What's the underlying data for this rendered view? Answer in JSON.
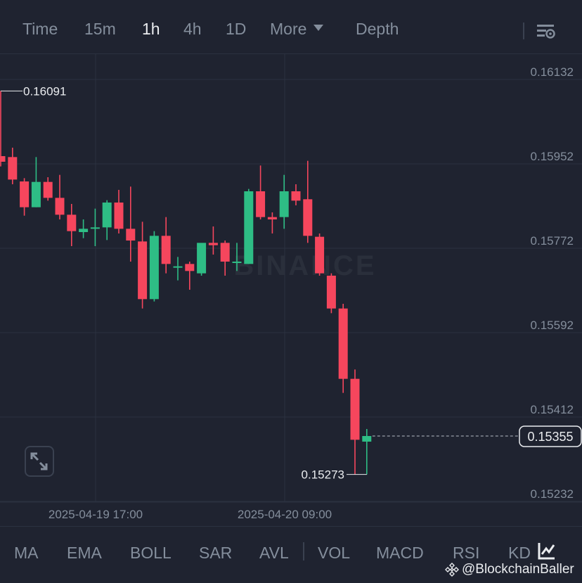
{
  "topbar": {
    "tabs": [
      {
        "label": "Time",
        "active": false
      },
      {
        "label": "15m",
        "active": false
      },
      {
        "label": "1h",
        "active": true
      },
      {
        "label": "4h",
        "active": false
      },
      {
        "label": "1D",
        "active": false
      },
      {
        "label": "More",
        "active": false
      },
      {
        "label": "Depth",
        "active": false
      }
    ],
    "settings_icon": "chart-settings-icon"
  },
  "chart_data": {
    "type": "candlestick",
    "watermark": "BINANCE",
    "y_ticks": [
      "0.16132",
      "0.15952",
      "0.15772",
      "0.15592",
      "0.15412",
      "0.15232"
    ],
    "ylim": [
      0.15232,
      0.16132
    ],
    "x_tick_labels": [
      "2025-04-19 17:00",
      "2025-04-20 09:00"
    ],
    "high_marker": "0.16091",
    "low_marker": "0.15273",
    "last_price": "0.15355",
    "colors": {
      "up": "#2ebd85",
      "down": "#f6465d",
      "background": "#1f2330",
      "grid": "#2b3140"
    },
    "candles": [
      {
        "o": 0.15952,
        "h": 0.16091,
        "c": 0.1594,
        "l": 0.1593
      },
      {
        "o": 0.1595,
        "h": 0.1597,
        "c": 0.15902,
        "l": 0.15892
      },
      {
        "o": 0.15898,
        "h": 0.15905,
        "c": 0.15843,
        "l": 0.15825
      },
      {
        "o": 0.15843,
        "h": 0.1595,
        "c": 0.15897,
        "l": 0.15843
      },
      {
        "o": 0.15897,
        "h": 0.15907,
        "c": 0.15863,
        "l": 0.15857
      },
      {
        "o": 0.15863,
        "h": 0.15912,
        "c": 0.15827,
        "l": 0.15817
      },
      {
        "o": 0.15827,
        "h": 0.1585,
        "c": 0.15792,
        "l": 0.1576
      },
      {
        "o": 0.1579,
        "h": 0.15817,
        "c": 0.15797,
        "l": 0.15777
      },
      {
        "o": 0.158,
        "h": 0.1584,
        "c": 0.158,
        "l": 0.1576
      },
      {
        "o": 0.158,
        "h": 0.15858,
        "c": 0.15853,
        "l": 0.15773
      },
      {
        "o": 0.15853,
        "h": 0.1588,
        "c": 0.15797,
        "l": 0.15787
      },
      {
        "o": 0.15797,
        "h": 0.15887,
        "c": 0.15772,
        "l": 0.15727
      },
      {
        "o": 0.1577,
        "h": 0.15812,
        "c": 0.15647,
        "l": 0.15627
      },
      {
        "o": 0.15647,
        "h": 0.15792,
        "c": 0.15782,
        "l": 0.15642
      },
      {
        "o": 0.15782,
        "h": 0.15822,
        "c": 0.15722,
        "l": 0.15702
      },
      {
        "o": 0.15717,
        "h": 0.15737,
        "c": 0.15717,
        "l": 0.15687
      },
      {
        "o": 0.15722,
        "h": 0.15727,
        "c": 0.15707,
        "l": 0.15667
      },
      {
        "o": 0.15702,
        "h": 0.15762,
        "c": 0.15767,
        "l": 0.15697
      },
      {
        "o": 0.15767,
        "h": 0.15802,
        "c": 0.15762,
        "l": 0.15742
      },
      {
        "o": 0.15767,
        "h": 0.15772,
        "c": 0.15727,
        "l": 0.15697
      },
      {
        "o": 0.15727,
        "h": 0.15767,
        "c": 0.15727,
        "l": 0.15707
      },
      {
        "o": 0.15722,
        "h": 0.15882,
        "c": 0.15877,
        "l": 0.15722
      },
      {
        "o": 0.15877,
        "h": 0.15932,
        "c": 0.15822,
        "l": 0.15817
      },
      {
        "o": 0.15822,
        "h": 0.15832,
        "c": 0.15817,
        "l": 0.15787
      },
      {
        "o": 0.15822,
        "h": 0.15912,
        "c": 0.15877,
        "l": 0.15797
      },
      {
        "o": 0.15877,
        "h": 0.15892,
        "c": 0.15857,
        "l": 0.15847
      },
      {
        "o": 0.1586,
        "h": 0.15942,
        "c": 0.15782,
        "l": 0.15767
      },
      {
        "o": 0.1578,
        "h": 0.15787,
        "c": 0.15702,
        "l": 0.15697
      },
      {
        "o": 0.15697,
        "h": 0.15702,
        "c": 0.15627,
        "l": 0.15617
      },
      {
        "o": 0.15627,
        "h": 0.15637,
        "c": 0.15477,
        "l": 0.15447
      },
      {
        "o": 0.15477,
        "h": 0.15497,
        "c": 0.15347,
        "l": 0.15273
      },
      {
        "o": 0.15343,
        "h": 0.1537,
        "c": 0.15355,
        "l": 0.15273
      }
    ]
  },
  "bottombar": {
    "indicators": [
      "MA",
      "EMA",
      "BOLL",
      "SAR",
      "AVL",
      "VOL",
      "MACD",
      "RSI",
      "KD"
    ],
    "settings_icon": "indicator-settings-icon"
  },
  "watermark_handle": "@BlockchainBaller"
}
